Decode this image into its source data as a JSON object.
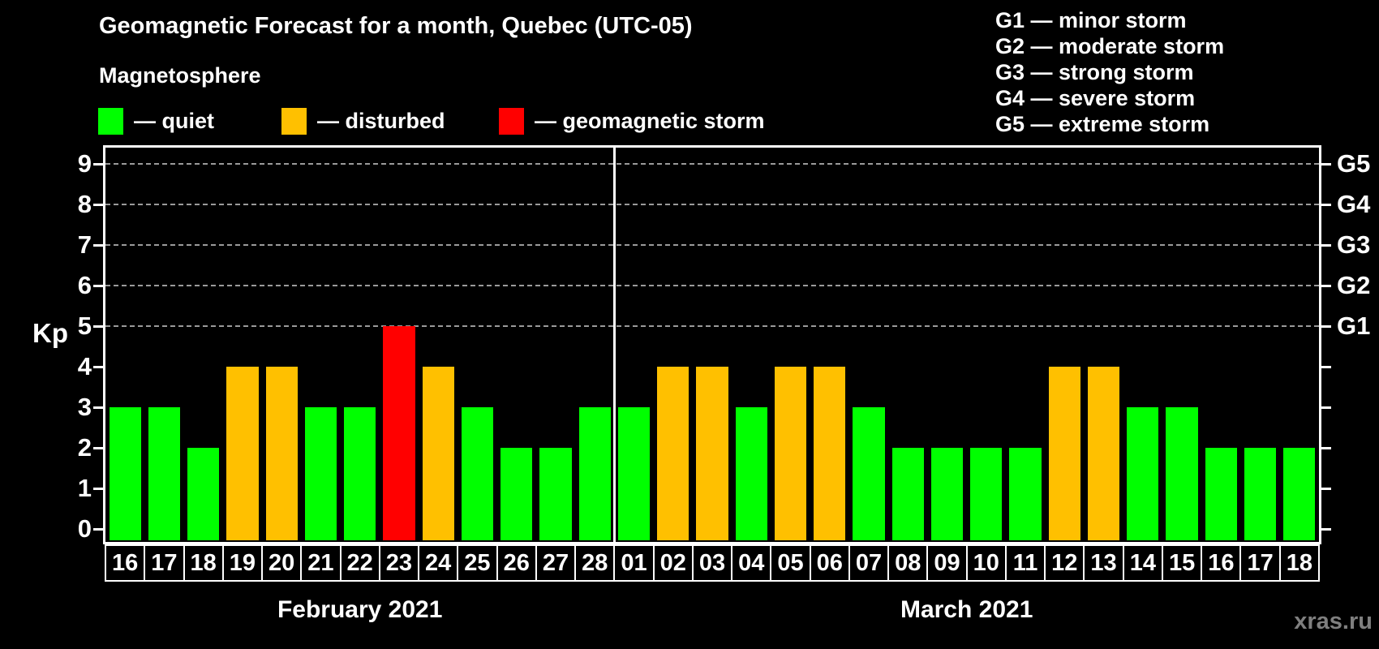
{
  "title": "Geomagnetic Forecast for a month, Quebec (UTC-05)",
  "subtitle": "Magnetosphere",
  "legend": {
    "items": [
      {
        "label": "— quiet",
        "status": "quiet",
        "color": "#00ff00"
      },
      {
        "label": "— disturbed",
        "status": "disturbed",
        "color": "#ffc000"
      },
      {
        "label": "— geomagnetic storm",
        "status": "storm",
        "color": "#ff0000"
      }
    ]
  },
  "g_scale_legend": [
    "G1 — minor storm",
    "G2 — moderate storm",
    "G3 — strong storm",
    "G4 — severe storm",
    "G5 — extreme storm"
  ],
  "watermark": "xras.ru",
  "chart_data": {
    "type": "bar",
    "title": "Geomagnetic Forecast for a month, Quebec (UTC-05)",
    "ylabel": "Kp",
    "ylim": [
      0,
      9
    ],
    "yticks": [
      0,
      1,
      2,
      3,
      4,
      5,
      6,
      7,
      8,
      9
    ],
    "gridlines_at_kp": [
      5,
      6,
      7,
      8,
      9
    ],
    "grid_style": "dashed",
    "legend_position": "top",
    "right_axis": [
      {
        "kp": 5,
        "label": "G1"
      },
      {
        "kp": 6,
        "label": "G2"
      },
      {
        "kp": 7,
        "label": "G3"
      },
      {
        "kp": 8,
        "label": "G4"
      },
      {
        "kp": 9,
        "label": "G5"
      }
    ],
    "status_colors": {
      "quiet": "#00ff00",
      "disturbed": "#ffc000",
      "storm": "#ff0000"
    },
    "months": [
      {
        "label": "February 2021",
        "categories": [
          "16",
          "17",
          "18",
          "19",
          "20",
          "21",
          "22",
          "23",
          "24",
          "25",
          "26",
          "27",
          "28"
        ],
        "values": [
          3,
          3,
          2,
          4,
          4,
          3,
          3,
          5,
          4,
          3,
          2,
          2,
          3
        ],
        "status": [
          "quiet",
          "quiet",
          "quiet",
          "disturbed",
          "disturbed",
          "quiet",
          "quiet",
          "storm",
          "disturbed",
          "quiet",
          "quiet",
          "quiet",
          "quiet"
        ]
      },
      {
        "label": "March 2021",
        "categories": [
          "01",
          "02",
          "03",
          "04",
          "05",
          "06",
          "07",
          "08",
          "09",
          "10",
          "11",
          "12",
          "13",
          "14",
          "15",
          "16",
          "17",
          "18"
        ],
        "values": [
          3,
          4,
          4,
          3,
          4,
          4,
          3,
          2,
          2,
          2,
          2,
          4,
          4,
          3,
          3,
          2,
          2,
          2
        ],
        "status": [
          "quiet",
          "disturbed",
          "disturbed",
          "quiet",
          "disturbed",
          "disturbed",
          "quiet",
          "quiet",
          "quiet",
          "quiet",
          "quiet",
          "disturbed",
          "disturbed",
          "quiet",
          "quiet",
          "quiet",
          "quiet",
          "quiet"
        ]
      }
    ]
  }
}
